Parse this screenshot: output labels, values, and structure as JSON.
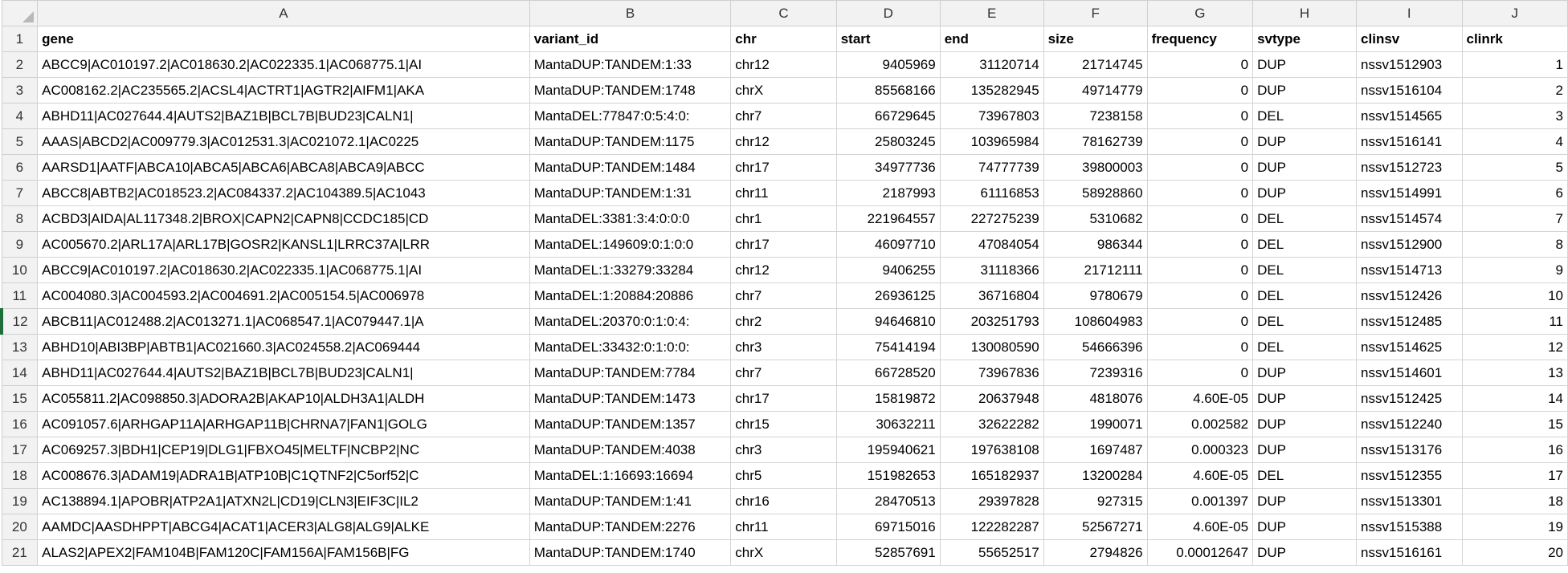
{
  "columns": [
    "A",
    "B",
    "C",
    "D",
    "E",
    "F",
    "G",
    "H",
    "I",
    "J"
  ],
  "headers": [
    "gene",
    "variant_id",
    "chr",
    "start",
    "end",
    "size",
    "frequency",
    "svtype",
    "clinsv",
    "clinrk"
  ],
  "rows": [
    {
      "n": "2",
      "gene": "ABCC9|AC010197.2|AC018630.2|AC022335.1|AC068775.1|AI",
      "variant_id": "MantaDUP:TANDEM:1:33",
      "chr": "chr12",
      "start": "9405969",
      "end": "31120714",
      "size": "21714745",
      "frequency": "0",
      "svtype": "DUP",
      "clinsv": "nssv1512903",
      "clinrk": "1"
    },
    {
      "n": "3",
      "gene": "AC008162.2|AC235565.2|ACSL4|ACTRT1|AGTR2|AIFM1|AKA",
      "variant_id": "MantaDUP:TANDEM:1748",
      "chr": "chrX",
      "start": "85568166",
      "end": "135282945",
      "size": "49714779",
      "frequency": "0",
      "svtype": "DUP",
      "clinsv": "nssv1516104",
      "clinrk": "2"
    },
    {
      "n": "4",
      "gene": "ABHD11|AC027644.4|AUTS2|BAZ1B|BCL7B|BUD23|CALN1|",
      "variant_id": "MantaDEL:77847:0:5:4:0:",
      "chr": "chr7",
      "start": "66729645",
      "end": "73967803",
      "size": "7238158",
      "frequency": "0",
      "svtype": "DEL",
      "clinsv": "nssv1514565",
      "clinrk": "3"
    },
    {
      "n": "5",
      "gene": "AAAS|ABCD2|AC009779.3|AC012531.3|AC021072.1|AC0225",
      "variant_id": "MantaDUP:TANDEM:1175",
      "chr": "chr12",
      "start": "25803245",
      "end": "103965984",
      "size": "78162739",
      "frequency": "0",
      "svtype": "DUP",
      "clinsv": "nssv1516141",
      "clinrk": "4"
    },
    {
      "n": "6",
      "gene": "AARSD1|AATF|ABCA10|ABCA5|ABCA6|ABCA8|ABCA9|ABCC",
      "variant_id": "MantaDUP:TANDEM:1484",
      "chr": "chr17",
      "start": "34977736",
      "end": "74777739",
      "size": "39800003",
      "frequency": "0",
      "svtype": "DUP",
      "clinsv": "nssv1512723",
      "clinrk": "5"
    },
    {
      "n": "7",
      "gene": "ABCC8|ABTB2|AC018523.2|AC084337.2|AC104389.5|AC1043",
      "variant_id": "MantaDUP:TANDEM:1:31",
      "chr": "chr11",
      "start": "2187993",
      "end": "61116853",
      "size": "58928860",
      "frequency": "0",
      "svtype": "DUP",
      "clinsv": "nssv1514991",
      "clinrk": "6"
    },
    {
      "n": "8",
      "gene": "ACBD3|AIDA|AL117348.2|BROX|CAPN2|CAPN8|CCDC185|CD",
      "variant_id": "MantaDEL:3381:3:4:0:0:0",
      "chr": "chr1",
      "start": "221964557",
      "end": "227275239",
      "size": "5310682",
      "frequency": "0",
      "svtype": "DEL",
      "clinsv": "nssv1514574",
      "clinrk": "7"
    },
    {
      "n": "9",
      "gene": "AC005670.2|ARL17A|ARL17B|GOSR2|KANSL1|LRRC37A|LRR",
      "variant_id": "MantaDEL:149609:0:1:0:0",
      "chr": "chr17",
      "start": "46097710",
      "end": "47084054",
      "size": "986344",
      "frequency": "0",
      "svtype": "DEL",
      "clinsv": "nssv1512900",
      "clinrk": "8"
    },
    {
      "n": "10",
      "gene": "ABCC9|AC010197.2|AC018630.2|AC022335.1|AC068775.1|AI",
      "variant_id": "MantaDEL:1:33279:33284",
      "chr": "chr12",
      "start": "9406255",
      "end": "31118366",
      "size": "21712111",
      "frequency": "0",
      "svtype": "DEL",
      "clinsv": "nssv1514713",
      "clinrk": "9"
    },
    {
      "n": "11",
      "gene": "AC004080.3|AC004593.2|AC004691.2|AC005154.5|AC006978",
      "variant_id": "MantaDEL:1:20884:20886",
      "chr": "chr7",
      "start": "26936125",
      "end": "36716804",
      "size": "9780679",
      "frequency": "0",
      "svtype": "DEL",
      "clinsv": "nssv1512426",
      "clinrk": "10"
    },
    {
      "n": "12",
      "gene": "ABCB11|AC012488.2|AC013271.1|AC068547.1|AC079447.1|A",
      "variant_id": "MantaDEL:20370:0:1:0:4:",
      "chr": "chr2",
      "start": "94646810",
      "end": "203251793",
      "size": "108604983",
      "frequency": "0",
      "svtype": "DEL",
      "clinsv": "nssv1512485",
      "clinrk": "11"
    },
    {
      "n": "13",
      "gene": "ABHD10|ABI3BP|ABTB1|AC021660.3|AC024558.2|AC069444",
      "variant_id": "MantaDEL:33432:0:1:0:0:",
      "chr": "chr3",
      "start": "75414194",
      "end": "130080590",
      "size": "54666396",
      "frequency": "0",
      "svtype": "DEL",
      "clinsv": "nssv1514625",
      "clinrk": "12"
    },
    {
      "n": "14",
      "gene": "ABHD11|AC027644.4|AUTS2|BAZ1B|BCL7B|BUD23|CALN1|",
      "variant_id": "MantaDUP:TANDEM:7784",
      "chr": "chr7",
      "start": "66728520",
      "end": "73967836",
      "size": "7239316",
      "frequency": "0",
      "svtype": "DUP",
      "clinsv": "nssv1514601",
      "clinrk": "13"
    },
    {
      "n": "15",
      "gene": "AC055811.2|AC098850.3|ADORA2B|AKAP10|ALDH3A1|ALDH",
      "variant_id": "MantaDUP:TANDEM:1473",
      "chr": "chr17",
      "start": "15819872",
      "end": "20637948",
      "size": "4818076",
      "frequency": "4.60E-05",
      "svtype": "DUP",
      "clinsv": "nssv1512425",
      "clinrk": "14"
    },
    {
      "n": "16",
      "gene": "AC091057.6|ARHGAP11A|ARHGAP11B|CHRNA7|FAN1|GOLG",
      "variant_id": "MantaDUP:TANDEM:1357",
      "chr": "chr15",
      "start": "30632211",
      "end": "32622282",
      "size": "1990071",
      "frequency": "0.002582",
      "svtype": "DUP",
      "clinsv": "nssv1512240",
      "clinrk": "15"
    },
    {
      "n": "17",
      "gene": "AC069257.3|BDH1|CEP19|DLG1|FBXO45|MELTF|NCBP2|NC",
      "variant_id": "MantaDUP:TANDEM:4038",
      "chr": "chr3",
      "start": "195940621",
      "end": "197638108",
      "size": "1697487",
      "frequency": "0.000323",
      "svtype": "DUP",
      "clinsv": "nssv1513176",
      "clinrk": "16"
    },
    {
      "n": "18",
      "gene": "AC008676.3|ADAM19|ADRA1B|ATP10B|C1QTNF2|C5orf52|C",
      "variant_id": "MantaDEL:1:16693:16694",
      "chr": "chr5",
      "start": "151982653",
      "end": "165182937",
      "size": "13200284",
      "frequency": "4.60E-05",
      "svtype": "DEL",
      "clinsv": "nssv1512355",
      "clinrk": "17"
    },
    {
      "n": "19",
      "gene": "AC138894.1|APOBR|ATP2A1|ATXN2L|CD19|CLN3|EIF3C|IL2",
      "variant_id": "MantaDUP:TANDEM:1:41",
      "chr": "chr16",
      "start": "28470513",
      "end": "29397828",
      "size": "927315",
      "frequency": "0.001397",
      "svtype": "DUP",
      "clinsv": "nssv1513301",
      "clinrk": "18"
    },
    {
      "n": "20",
      "gene": "AAMDC|AASDHPPT|ABCG4|ACAT1|ACER3|ALG8|ALG9|ALKE",
      "variant_id": "MantaDUP:TANDEM:2276",
      "chr": "chr11",
      "start": "69715016",
      "end": "122282287",
      "size": "52567271",
      "frequency": "4.60E-05",
      "svtype": "DUP",
      "clinsv": "nssv1515388",
      "clinrk": "19"
    },
    {
      "n": "21",
      "gene": "ALAS2|APEX2|FAM104B|FAM120C|FAM156A|FAM156B|FG",
      "variant_id": "MantaDUP:TANDEM:1740",
      "chr": "chrX",
      "start": "52857691",
      "end": "55652517",
      "size": "2794826",
      "frequency": "0.00012647",
      "svtype": "DUP",
      "clinsv": "nssv1516161",
      "clinrk": "20"
    }
  ]
}
